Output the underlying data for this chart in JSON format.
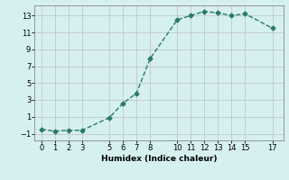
{
  "x": [
    0,
    1,
    2,
    3,
    5,
    6,
    7,
    8,
    10,
    11,
    12,
    13,
    14,
    15,
    17
  ],
  "y": [
    -0.5,
    -0.7,
    -0.6,
    -0.6,
    0.9,
    2.6,
    3.8,
    7.9,
    12.5,
    13.0,
    13.5,
    13.3,
    13.0,
    13.2,
    11.5
  ],
  "line_color": "#2a7a6a",
  "marker": "D",
  "marker_size": 2.5,
  "bg_color": "#d6f0ef",
  "grid_color": "#c0c8c8",
  "xlabel": "Humidex (Indice chaleur)",
  "xlabel_fontsize": 6.5,
  "xticks": [
    0,
    1,
    2,
    3,
    5,
    6,
    7,
    8,
    10,
    11,
    12,
    13,
    14,
    15,
    17
  ],
  "yticks": [
    -1,
    1,
    3,
    5,
    7,
    9,
    11,
    13
  ],
  "xlim": [
    -0.5,
    17.8
  ],
  "ylim": [
    -1.8,
    14.2
  ],
  "tick_fontsize": 6,
  "linewidth": 1.0,
  "linestyle": "--"
}
